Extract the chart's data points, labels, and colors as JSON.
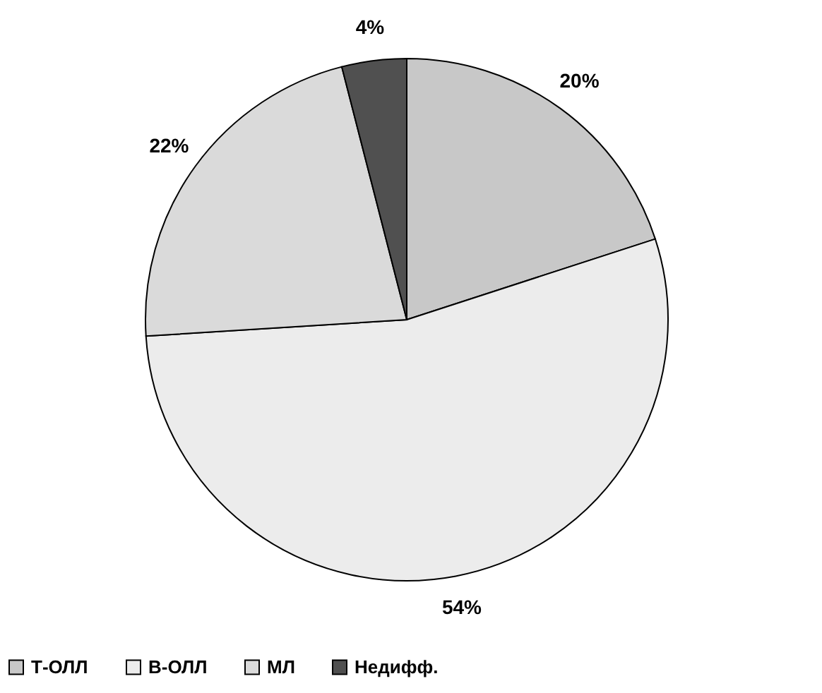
{
  "chart_data": {
    "type": "pie",
    "categories": [
      "Т-ОЛЛ",
      "В-ОЛЛ",
      "МЛ",
      "Недифф."
    ],
    "values": [
      20,
      54,
      22,
      4
    ],
    "value_labels": [
      "20%",
      "54%",
      "22%",
      "4%"
    ],
    "colors": [
      "#c8c8c8",
      "#ececec",
      "#dadada",
      "#505050"
    ],
    "legend": "bottom"
  }
}
